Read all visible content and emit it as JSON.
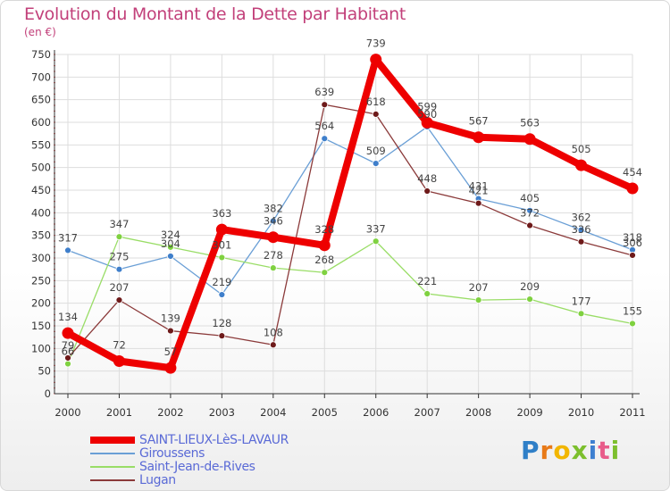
{
  "chart_data": {
    "type": "line",
    "title": "Evolution du Montant de la Dette par Habitant",
    "subtitle": "(en €)",
    "x": [
      "2000",
      "2001",
      "2002",
      "2003",
      "2004",
      "2005",
      "2006",
      "2007",
      "2008",
      "2009",
      "2010",
      "2011"
    ],
    "ylim": [
      0,
      750
    ],
    "yticks": [
      "0",
      "50",
      "100",
      "150",
      "200",
      "250",
      "300",
      "350",
      "400",
      "450",
      "500",
      "550",
      "600",
      "650",
      "700",
      "750"
    ],
    "grid": true,
    "legend_position": "bottom-left",
    "series": [
      {
        "name": "SAINT-LIEUX-LèS-LAVAUR",
        "color": "#ee0000",
        "width": 8,
        "marker": 6.5,
        "markerColor": "#ee0000",
        "values": [
          134,
          72,
          57,
          363,
          346,
          328,
          739,
          599,
          567,
          563,
          505,
          454
        ],
        "labels": [
          "134",
          "72",
          "57",
          "363",
          "346",
          "328",
          "739",
          "599",
          "567",
          "563",
          "505",
          "454"
        ]
      },
      {
        "name": "Giroussens",
        "color": "#6a9fd6",
        "width": 1.3,
        "marker": 3.5,
        "markerColor": "#3f7fcb",
        "values": [
          317,
          275,
          304,
          219,
          382,
          564,
          509,
          590,
          431,
          405,
          362,
          318
        ],
        "labels": [
          "317",
          "275",
          "304",
          "219",
          "382",
          "564",
          "509",
          "590",
          "431",
          "405",
          "362",
          "318"
        ]
      },
      {
        "name": "Saint-Jean-de-Rives",
        "color": "#99dd66",
        "width": 1.3,
        "marker": 3.5,
        "markerColor": "#7fd140",
        "values": [
          66,
          347,
          324,
          301,
          278,
          268,
          337,
          221,
          207,
          209,
          177,
          155
        ],
        "labels": [
          "66",
          "347",
          "324",
          "301",
          "278",
          "268",
          "337",
          "221",
          "207",
          "209",
          "177",
          "155"
        ]
      },
      {
        "name": "Lugan",
        "color": "#8b3a3a",
        "width": 1.3,
        "marker": 3.5,
        "markerColor": "#6e1a1a",
        "values": [
          79,
          207,
          139,
          128,
          108,
          639,
          618,
          448,
          421,
          372,
          336,
          306
        ],
        "labels": [
          "79",
          "207",
          "139",
          "128",
          "108",
          "639",
          "618",
          "448",
          "421",
          "372",
          "336",
          "306"
        ]
      }
    ]
  },
  "logo": {
    "letters": [
      "P",
      "r",
      "o",
      "x",
      "i",
      "t",
      "i"
    ],
    "colors": [
      "#2f7fc7",
      "#e87a18",
      "#f2b600",
      "#7cbf2d",
      "#3d7fd0",
      "#e85c8a",
      "#7cbf2d"
    ]
  }
}
